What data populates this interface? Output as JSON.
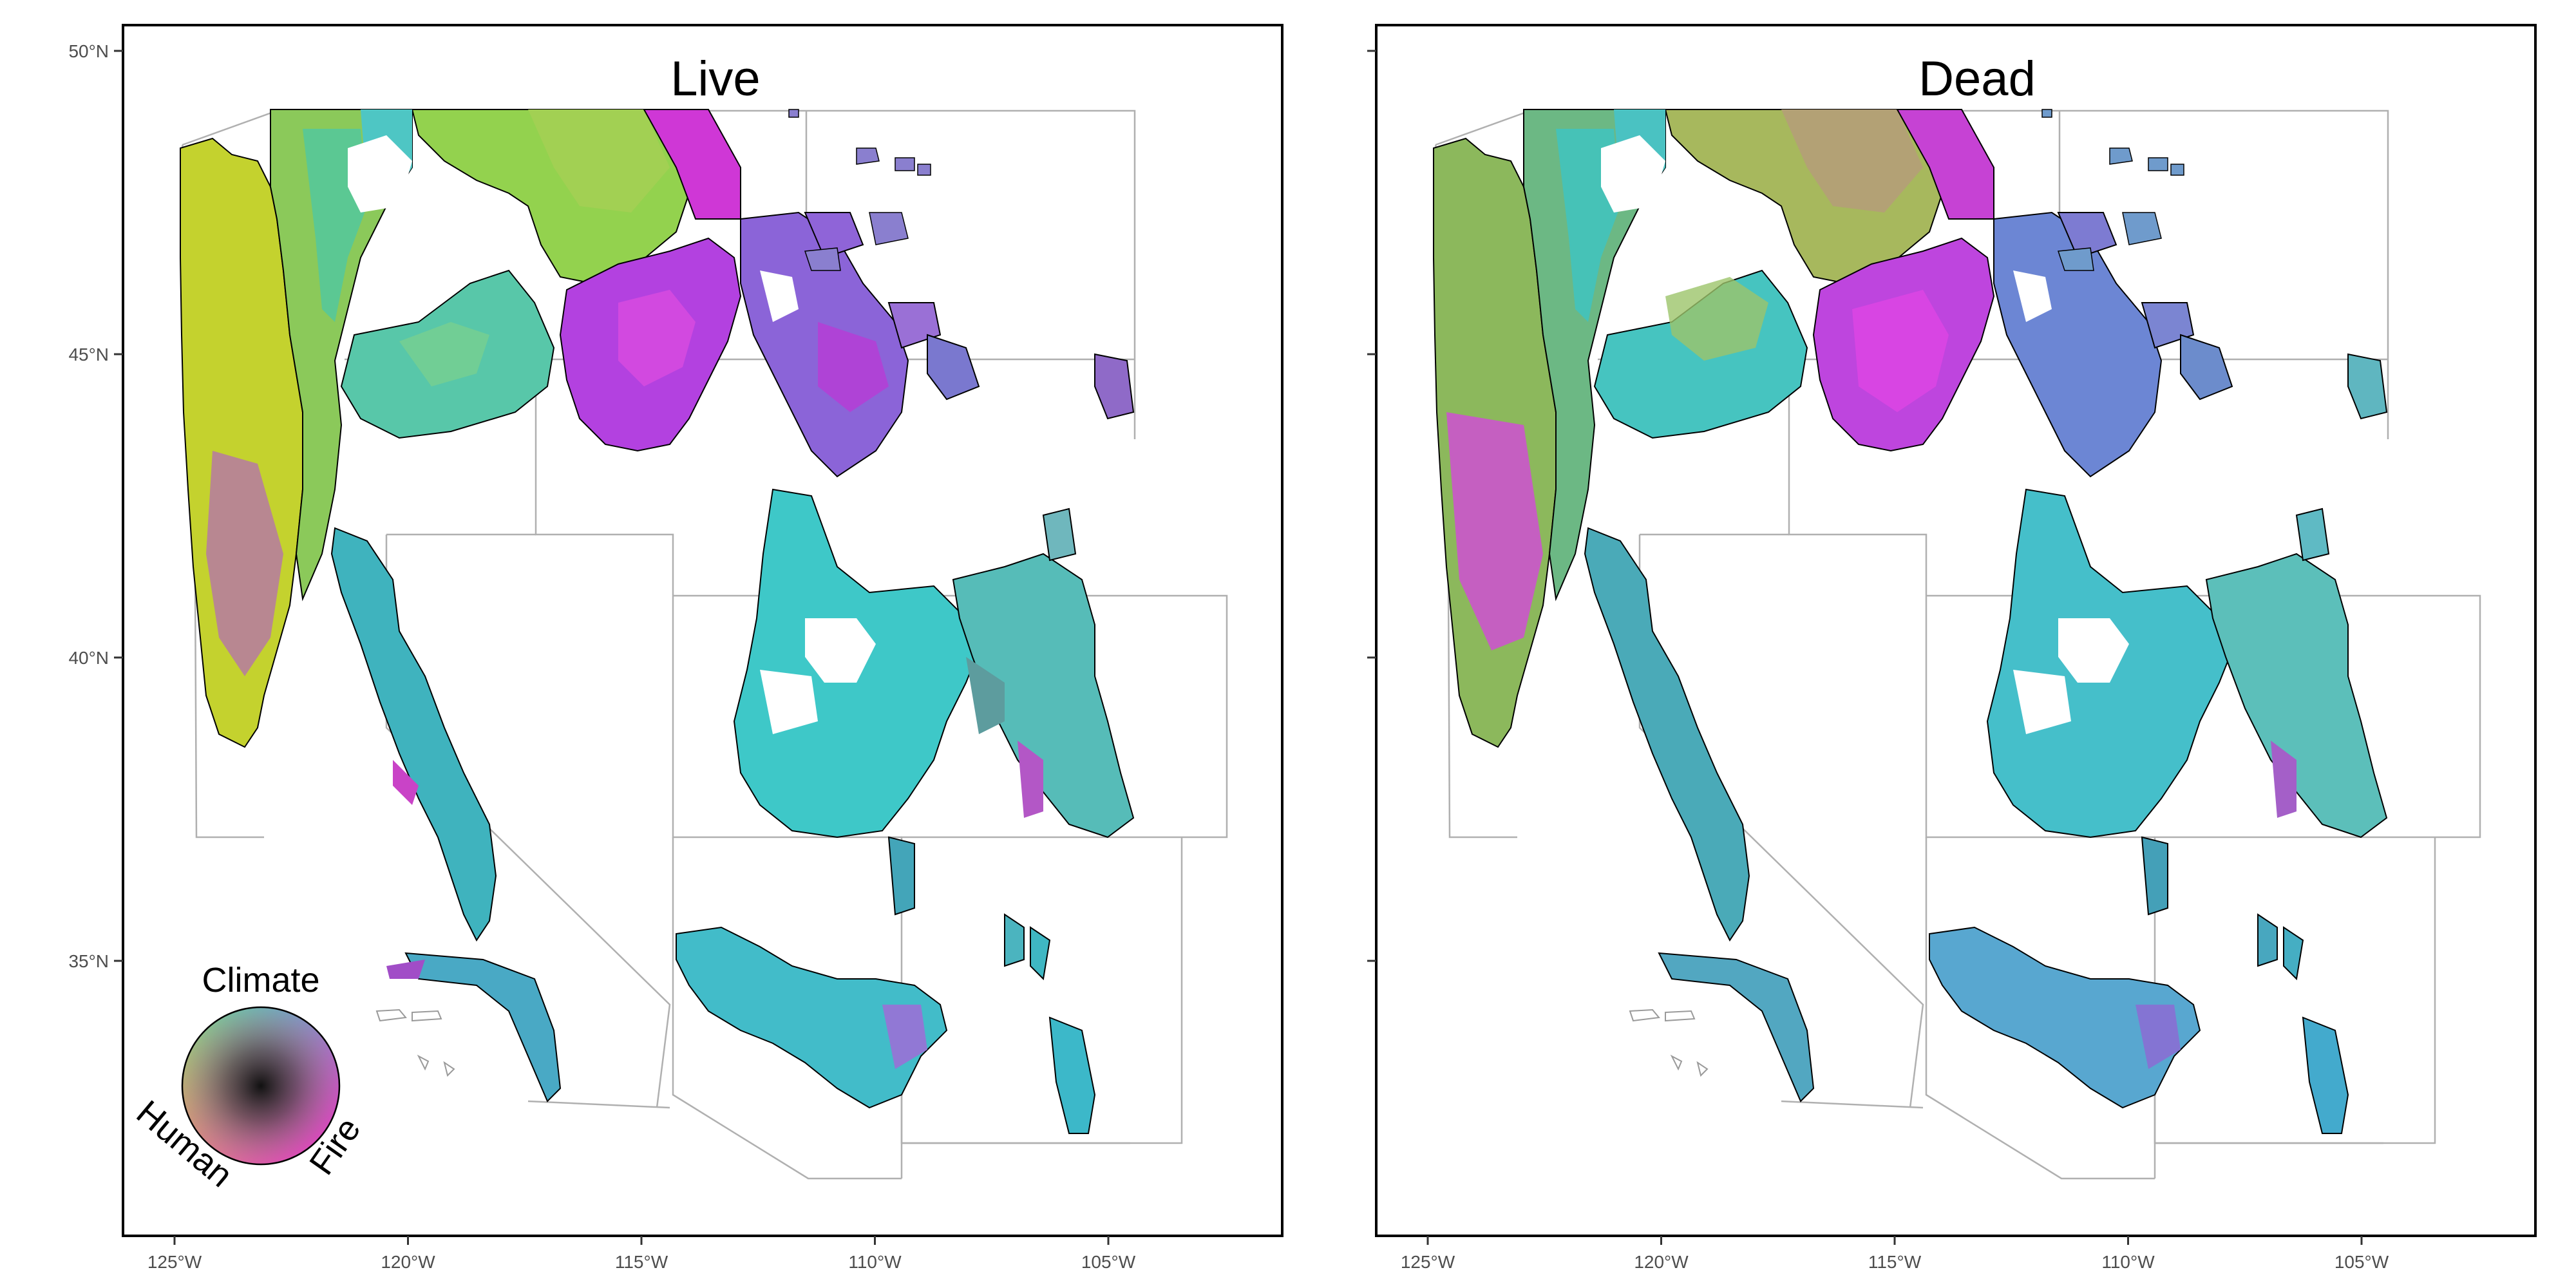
{
  "figure": {
    "panels": [
      {
        "title": "Live",
        "dominant_fill": "grid of colored cells (mix of yellow-green, teal, magenta)"
      },
      {
        "title": "Dead",
        "dominant_fill": "grid of colored cells (mostly teal, with magenta in west)"
      }
    ],
    "y_axis": {
      "ticks": [
        "50°N",
        "45°N",
        "40°N",
        "35°N"
      ],
      "values": [
        50,
        45,
        40,
        35
      ]
    },
    "x_axis": {
      "ticks": [
        "125°W",
        "120°W",
        "115°W",
        "110°W",
        "105°W"
      ],
      "values": [
        -125,
        -120,
        -115,
        -110,
        -105
      ]
    },
    "extent": {
      "lon": [
        -126,
        -101
      ],
      "lat": [
        30.5,
        50.5
      ]
    },
    "legend": {
      "labels": {
        "top": "Climate",
        "left": "Human",
        "right": "Fire"
      },
      "colors": {
        "climate": "#22d3c5",
        "human": "#d4d832",
        "fire": "#e01fd4",
        "center": "#1a1a1a"
      }
    }
  }
}
